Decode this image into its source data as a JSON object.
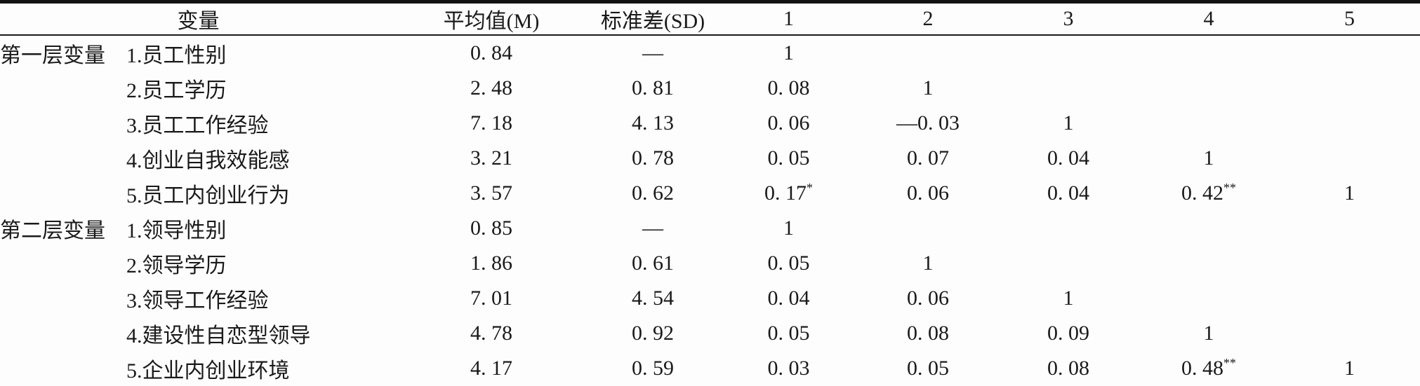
{
  "table": {
    "headers": {
      "variable": "变量",
      "mean": "平均值(M)",
      "sd": "标准差(SD)",
      "corr": [
        "1",
        "2",
        "3",
        "4",
        "5"
      ]
    },
    "rows": [
      {
        "group": "第一层变量",
        "name": "1.员工性别",
        "mean": "0. 84",
        "sd": "—",
        "r": [
          "1",
          "",
          "",
          "",
          ""
        ]
      },
      {
        "group": "",
        "name": "2.员工学历",
        "mean": "2. 48",
        "sd": "0. 81",
        "r": [
          "0. 08",
          "1",
          "",
          "",
          ""
        ]
      },
      {
        "group": "",
        "name": "3.员工工作经验",
        "mean": "7. 18",
        "sd": "4. 13",
        "r": [
          "0. 06",
          "—0. 03",
          "1",
          "",
          ""
        ]
      },
      {
        "group": "",
        "name": "4.创业自我效能感",
        "mean": "3. 21",
        "sd": "0. 78",
        "r": [
          "0. 05",
          "0. 07",
          "0. 04",
          "1",
          ""
        ]
      },
      {
        "group": "",
        "name": "5.员工内创业行为",
        "mean": "3. 57",
        "sd": "0. 62",
        "r": [
          "0. 17*",
          "0. 06",
          "0. 04",
          "0. 42**",
          "1"
        ]
      },
      {
        "group": "第二层变量",
        "name": "1.领导性别",
        "mean": "0. 85",
        "sd": "—",
        "r": [
          "1",
          "",
          "",
          "",
          ""
        ]
      },
      {
        "group": "",
        "name": "2.领导学历",
        "mean": "1. 86",
        "sd": "0. 61",
        "r": [
          "0. 05",
          "1",
          "",
          "",
          ""
        ]
      },
      {
        "group": "",
        "name": "3.领导工作经验",
        "mean": "7. 01",
        "sd": "4. 54",
        "r": [
          "0. 04",
          "0. 06",
          "1",
          "",
          ""
        ]
      },
      {
        "group": "",
        "name": "4.建设性自恋型领导",
        "mean": "4. 78",
        "sd": "0. 92",
        "r": [
          "0. 05",
          "0. 08",
          "0. 09",
          "1",
          ""
        ]
      },
      {
        "group": "",
        "name": "5.企业内创业环境",
        "mean": "4. 17",
        "sd": "0. 59",
        "r": [
          "0. 03",
          "0. 05",
          "0. 08",
          "0. 48**",
          "1"
        ]
      }
    ]
  }
}
